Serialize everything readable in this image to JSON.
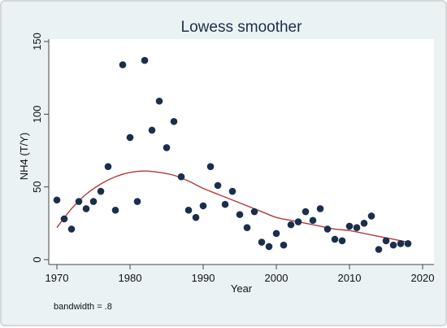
{
  "chart_data": {
    "type": "scatter",
    "title": "Lowess smoother",
    "xlabel": "Year",
    "ylabel": "NH4 (T/Y)",
    "xlim": [
      1970,
      2020
    ],
    "ylim": [
      0,
      150
    ],
    "xticks": [
      1970,
      1980,
      1990,
      2000,
      2010,
      2020
    ],
    "yticks": [
      0,
      50,
      100,
      150
    ],
    "grid": false,
    "note": "bandwidth = .8",
    "colors": {
      "points": "#1a2f4d",
      "smoother": "#b03a3a",
      "plot_bg": "#ffffff",
      "frame_bg": "#eaf2f3"
    },
    "series": [
      {
        "type": "scatter",
        "x": [
          1970,
          1971,
          1972,
          1973,
          1974,
          1975,
          1976,
          1977,
          1978,
          1979,
          1980,
          1981,
          1982,
          1983,
          1984,
          1985,
          1986,
          1987,
          1988,
          1989,
          1990,
          1991,
          1992,
          1993,
          1994,
          1995,
          1996,
          1997,
          1998,
          1999,
          2000,
          2001,
          2002,
          2003,
          2004,
          2005,
          2006,
          2007,
          2008,
          2009,
          2010,
          2011,
          2012,
          2013,
          2014,
          2015,
          2016,
          2017,
          2018
        ],
        "y": [
          41,
          28,
          21,
          40,
          35,
          40,
          47,
          64,
          34,
          134,
          84,
          40,
          137,
          89,
          109,
          77,
          95,
          57,
          34,
          29,
          37,
          64,
          51,
          38,
          47,
          31,
          22,
          33,
          12,
          9,
          18,
          10,
          24,
          26,
          33,
          27,
          35,
          21,
          14,
          13,
          23,
          22,
          25,
          30,
          7,
          13,
          10,
          11,
          11
        ]
      },
      {
        "type": "line",
        "x": [
          1970,
          1972,
          1974,
          1976,
          1978,
          1980,
          1982,
          1984,
          1986,
          1988,
          1990,
          1992,
          1994,
          1996,
          1998,
          2000,
          2002,
          2004,
          2006,
          2008,
          2010,
          2012,
          2014,
          2016,
          2018
        ],
        "y": [
          22,
          35,
          45,
          52,
          57,
          60,
          61,
          60,
          58,
          54,
          49,
          45,
          41,
          37,
          33,
          29,
          27,
          25,
          23,
          21,
          20,
          18,
          16,
          14,
          12
        ]
      }
    ]
  }
}
